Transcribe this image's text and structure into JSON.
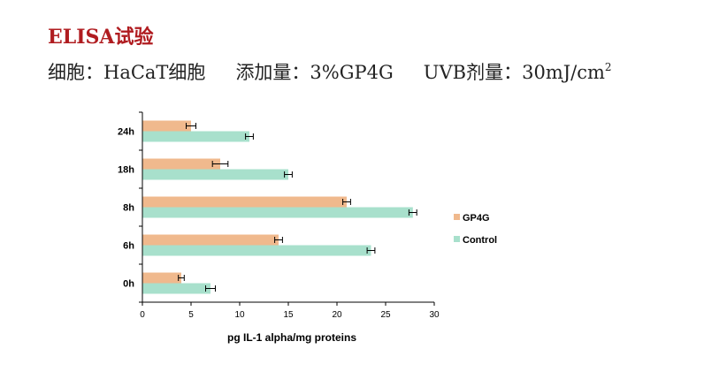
{
  "slide": {
    "title": "ELISA试验",
    "cell_label": "细胞：HaCaT细胞",
    "additive_label": "添加量：3%GP4G",
    "uvb_label": "UVB剂量：30mJ/cm",
    "uvb_superscript": "2"
  },
  "colors": {
    "title": "#b01c20",
    "gp4g": "#f0b98d",
    "control": "#a8e0cc",
    "error_bar": "#000000",
    "axis": "#000000"
  },
  "chart_data": {
    "type": "bar",
    "orientation": "horizontal",
    "categories": [
      "0h",
      "6h",
      "8h",
      "18h",
      "24h"
    ],
    "series": [
      {
        "name": "GP4G",
        "values": [
          4.0,
          14.0,
          21.0,
          8.0,
          5.0
        ],
        "errors": [
          0.3,
          0.4,
          0.4,
          0.8,
          0.5
        ]
      },
      {
        "name": "Control",
        "values": [
          7.0,
          23.5,
          27.8,
          15.0,
          11.0
        ],
        "errors": [
          0.5,
          0.4,
          0.4,
          0.4,
          0.4
        ]
      }
    ],
    "xlabel": "pg IL-1 alpha/mg proteins",
    "ylabel": "",
    "xlim": [
      0,
      30
    ],
    "xticks": [
      0,
      5,
      10,
      15,
      20,
      25,
      30
    ],
    "grid": false,
    "legend_position": "right"
  }
}
